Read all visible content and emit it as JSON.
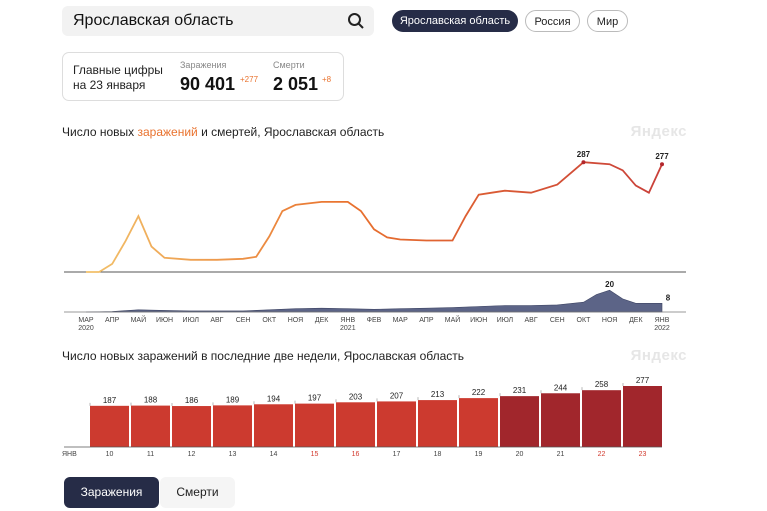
{
  "search": {
    "value": "Ярославская область",
    "icon": "search-icon"
  },
  "region_tabs": [
    {
      "label": "Ярославская область",
      "active": true
    },
    {
      "label": "Россия",
      "active": false
    },
    {
      "label": "Мир",
      "active": false
    }
  ],
  "summary": {
    "label_line1": "Главные цифры",
    "label_line2": "на 23 января",
    "cases_label": "Заражения",
    "cases_value": "90 401",
    "cases_delta": "+277",
    "deaths_label": "Смерти",
    "deaths_value": "2 051",
    "deaths_delta": "+8"
  },
  "brand": "Яндекс",
  "colors": {
    "accent": "#e9722e",
    "dark": "#262c47",
    "bar_light": "#cc3a2f",
    "bar_dark": "#a1262c"
  },
  "chart_data": [
    {
      "type": "line",
      "title_parts": [
        "Число новых ",
        "заражений",
        " и смертей, Ярославская область"
      ],
      "series": [
        {
          "points": [
            [
              0,
              0
            ],
            [
              0.5,
              0
            ],
            [
              1,
              8
            ],
            [
              1.5,
              30
            ],
            [
              2,
              55
            ],
            [
              2.5,
              25
            ],
            [
              3,
              14
            ],
            [
              4,
              12
            ],
            [
              5,
              12
            ],
            [
              6,
              13
            ],
            [
              6.5,
              15
            ],
            [
              7,
              35
            ],
            [
              7.5,
              60
            ],
            [
              8,
              66
            ],
            [
              9,
              69
            ],
            [
              10,
              69
            ],
            [
              10.5,
              60
            ],
            [
              11,
              42
            ],
            [
              11.5,
              34
            ],
            [
              12,
              32
            ],
            [
              13,
              31
            ],
            [
              14,
              31
            ],
            [
              14.5,
              55
            ],
            [
              15,
              76
            ],
            [
              15.5,
              78
            ],
            [
              16,
              80
            ],
            [
              17,
              78
            ],
            [
              18,
              86
            ],
            [
              19,
              108
            ],
            [
              20,
              106
            ],
            [
              20.5,
              100
            ],
            [
              21,
              85
            ],
            [
              21.5,
              78
            ],
            [
              22,
              106
            ]
          ],
          "point_labels": [
            {
              "x": 19,
              "label": "287"
            },
            {
              "x": 22,
              "label": "277"
            }
          ]
        },
        {
          "points": [
            [
              0,
              0
            ],
            [
              1,
              0.5
            ],
            [
              2,
              2
            ],
            [
              3,
              1.5
            ],
            [
              4,
              1
            ],
            [
              5,
              1
            ],
            [
              6,
              1
            ],
            [
              7,
              2
            ],
            [
              8,
              3
            ],
            [
              9,
              3.5
            ],
            [
              10,
              3
            ],
            [
              11,
              2.5
            ],
            [
              12,
              3
            ],
            [
              13,
              3.5
            ],
            [
              14,
              4
            ],
            [
              15,
              5
            ],
            [
              16,
              6
            ],
            [
              17,
              6
            ],
            [
              18,
              6.5
            ],
            [
              19,
              9
            ],
            [
              19.5,
              16
            ],
            [
              20,
              20
            ],
            [
              20.5,
              12
            ],
            [
              21,
              8
            ],
            [
              22,
              8
            ]
          ],
          "point_labels": [
            {
              "x": 20,
              "label": "20"
            },
            {
              "x": 22,
              "label": "8"
            }
          ]
        }
      ],
      "x_ticks": [
        "МАР",
        "АПР",
        "МАЙ",
        "ИЮН",
        "ИЮЛ",
        "АВГ",
        "СЕН",
        "ОКТ",
        "НОЯ",
        "ДЕК",
        "ЯНВ",
        "ФЕВ",
        "МАР",
        "АПР",
        "МАЙ",
        "ИЮН",
        "ИЮЛ",
        "АВГ",
        "СЕН",
        "ОКТ",
        "НОЯ",
        "ДЕК",
        "ЯНВ"
      ],
      "year_labels": [
        {
          "x": 0,
          "label": "2020"
        },
        {
          "x": 10,
          "label": "2021"
        },
        {
          "x": 22,
          "label": "2022"
        }
      ]
    },
    {
      "type": "bar",
      "title": "Число новых заражений в последние две недели, Ярославская область",
      "categories": [
        "10",
        "11",
        "12",
        "13",
        "14",
        "15",
        "16",
        "17",
        "18",
        "19",
        "20",
        "21",
        "22",
        "23"
      ],
      "month_label": "ЯНВ",
      "weekend_categories": [
        "15",
        "16",
        "22",
        "23"
      ],
      "values": [
        187,
        188,
        186,
        189,
        194,
        197,
        203,
        207,
        213,
        222,
        231,
        244,
        258,
        277
      ],
      "highlight_from_index": 10
    }
  ],
  "buttons": {
    "cases": "Заражения",
    "deaths": "Смерти"
  }
}
